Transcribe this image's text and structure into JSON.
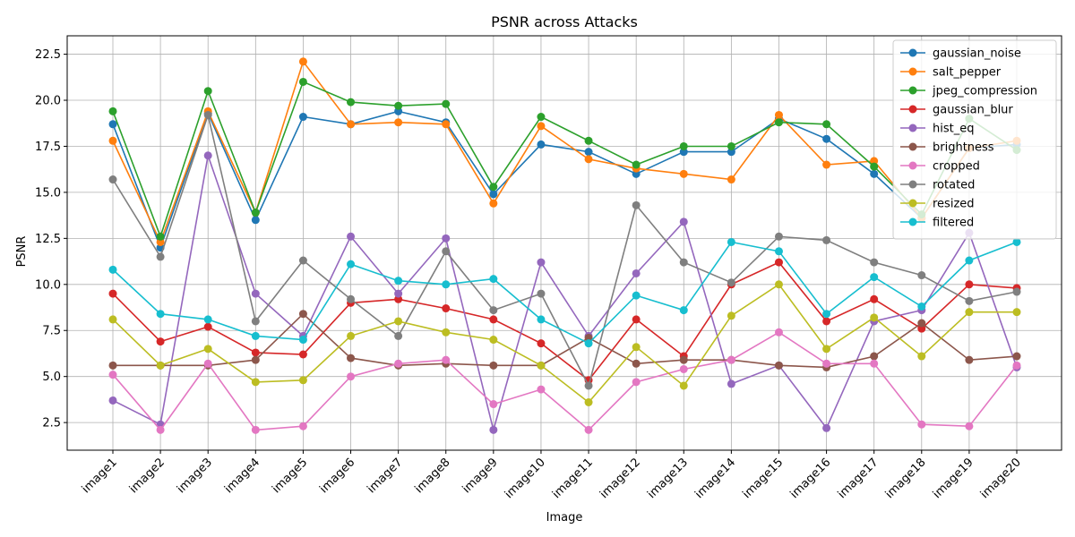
{
  "chart_data": {
    "type": "line",
    "title": "PSNR across Attacks",
    "xlabel": "Image",
    "ylabel": "PSNR",
    "ylim": [
      1.0,
      23.5
    ],
    "yticks": [
      "2.5",
      "5.0",
      "7.5",
      "10.0",
      "12.5",
      "15.0",
      "17.5",
      "20.0",
      "22.5"
    ],
    "grid": true,
    "legend_position": "top-right",
    "categories": [
      "image1",
      "image2",
      "image3",
      "image4",
      "image5",
      "image6",
      "image7",
      "image8",
      "image9",
      "image10",
      "image11",
      "image12",
      "image13",
      "image14",
      "image15",
      "image16",
      "image17",
      "image18",
      "image19",
      "image20"
    ],
    "series": [
      {
        "name": "gaussian_noise",
        "color": "#1f77b4",
        "values": [
          18.7,
          12.0,
          19.3,
          13.5,
          19.1,
          18.7,
          19.4,
          18.8,
          14.9,
          17.6,
          17.2,
          16.0,
          17.2,
          17.2,
          19.0,
          17.9,
          16.0,
          13.6,
          17.4,
          17.6
        ]
      },
      {
        "name": "salt_pepper",
        "color": "#ff7f0e",
        "values": [
          17.8,
          12.3,
          19.4,
          13.9,
          22.1,
          18.7,
          18.8,
          18.7,
          14.4,
          18.6,
          16.8,
          16.3,
          16.0,
          15.7,
          19.2,
          16.5,
          16.7,
          13.6,
          17.4,
          17.8
        ]
      },
      {
        "name": "jpeg_compression",
        "color": "#2ca02c",
        "values": [
          19.4,
          12.6,
          20.5,
          13.9,
          21.0,
          19.9,
          19.7,
          19.8,
          15.3,
          19.1,
          17.8,
          16.5,
          17.5,
          17.5,
          18.8,
          18.7,
          16.4,
          13.8,
          19.0,
          17.3
        ]
      },
      {
        "name": "gaussian_blur",
        "color": "#d62728",
        "values": [
          9.5,
          6.9,
          7.7,
          6.3,
          6.2,
          9.0,
          9.2,
          8.7,
          8.1,
          6.8,
          4.8,
          8.1,
          6.1,
          10.0,
          11.2,
          8.0,
          9.2,
          7.6,
          10.0,
          9.8
        ]
      },
      {
        "name": "hist_eq",
        "color": "#9467bd",
        "values": [
          3.7,
          2.4,
          17.0,
          9.5,
          7.2,
          12.6,
          9.5,
          12.5,
          2.1,
          11.2,
          7.2,
          10.6,
          13.4,
          4.6,
          5.6,
          2.2,
          8.0,
          8.6,
          12.8,
          5.5
        ]
      },
      {
        "name": "brightness",
        "color": "#8c564b",
        "values": [
          5.6,
          5.6,
          5.6,
          5.9,
          8.4,
          6.0,
          5.6,
          5.7,
          5.6,
          5.6,
          7.1,
          5.7,
          5.9,
          5.9,
          5.6,
          5.5,
          6.1,
          7.9,
          5.9,
          6.1
        ]
      },
      {
        "name": "cropped",
        "color": "#e377c2",
        "values": [
          5.1,
          2.1,
          5.7,
          2.1,
          2.3,
          5.0,
          5.7,
          5.9,
          3.5,
          4.3,
          2.1,
          4.7,
          5.4,
          5.9,
          7.4,
          5.7,
          5.7,
          2.4,
          2.3,
          5.6
        ]
      },
      {
        "name": "rotated",
        "color": "#7f7f7f",
        "values": [
          15.7,
          11.5,
          19.2,
          8.0,
          11.3,
          9.2,
          7.2,
          11.8,
          8.6,
          9.5,
          4.5,
          14.3,
          11.2,
          10.1,
          12.6,
          12.4,
          11.2,
          10.5,
          9.1,
          9.6
        ]
      },
      {
        "name": "resized",
        "color": "#bcbd22",
        "values": [
          8.1,
          5.6,
          6.5,
          4.7,
          4.8,
          7.2,
          8.0,
          7.4,
          7.0,
          5.6,
          3.6,
          6.6,
          4.5,
          8.3,
          10.0,
          6.5,
          8.2,
          6.1,
          8.5,
          8.5
        ]
      },
      {
        "name": "filtered",
        "color": "#17becf",
        "values": [
          10.8,
          8.4,
          8.1,
          7.2,
          7.0,
          11.1,
          10.2,
          10.0,
          10.3,
          8.1,
          6.8,
          9.4,
          8.6,
          12.3,
          11.8,
          8.4,
          10.4,
          8.8,
          11.3,
          12.3
        ]
      }
    ]
  }
}
